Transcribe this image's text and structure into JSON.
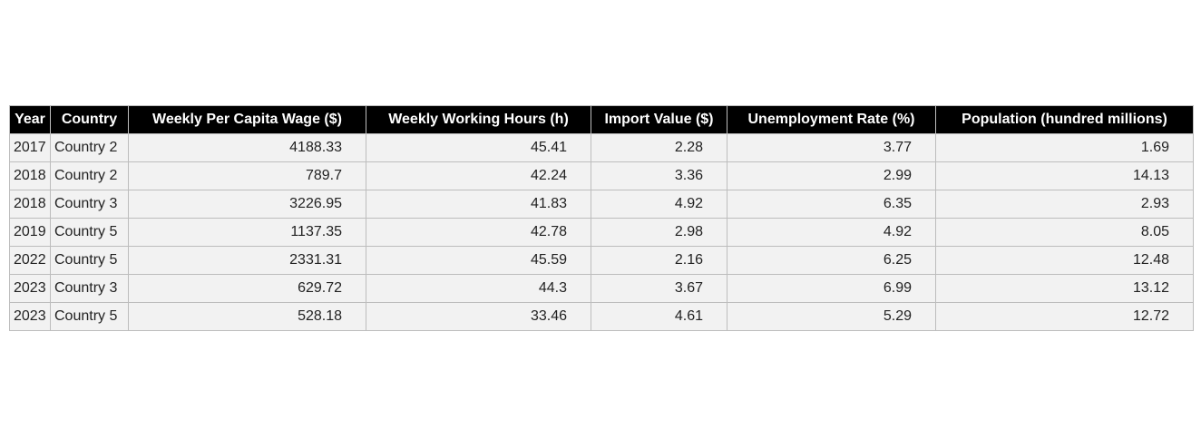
{
  "chart_data": {
    "type": "table",
    "columns": [
      "Year",
      "Country",
      "Weekly Per Capita Wage ($)",
      "Weekly Working Hours (h)",
      "Import Value ($)",
      "Unemployment Rate (%)",
      "Population (hundred millions)"
    ],
    "rows": [
      [
        "2017",
        "Country 2",
        "4188.33",
        "45.41",
        "2.28",
        "3.77",
        "1.69"
      ],
      [
        "2018",
        "Country 2",
        "789.7",
        "42.24",
        "3.36",
        "2.99",
        "14.13"
      ],
      [
        "2018",
        "Country 3",
        "3226.95",
        "41.83",
        "4.92",
        "6.35",
        "2.93"
      ],
      [
        "2019",
        "Country 5",
        "1137.35",
        "42.78",
        "2.98",
        "4.92",
        "8.05"
      ],
      [
        "2022",
        "Country 5",
        "2331.31",
        "45.59",
        "2.16",
        "6.25",
        "12.48"
      ],
      [
        "2023",
        "Country 3",
        "629.72",
        "44.3",
        "3.67",
        "6.99",
        "13.12"
      ],
      [
        "2023",
        "Country 5",
        "528.18",
        "33.46",
        "4.61",
        "5.29",
        "12.72"
      ]
    ],
    "header_background": "#000000",
    "header_text_color": "#ffffff",
    "cell_background": "#f2f2f2",
    "border_color": "#bdbdbd"
  }
}
